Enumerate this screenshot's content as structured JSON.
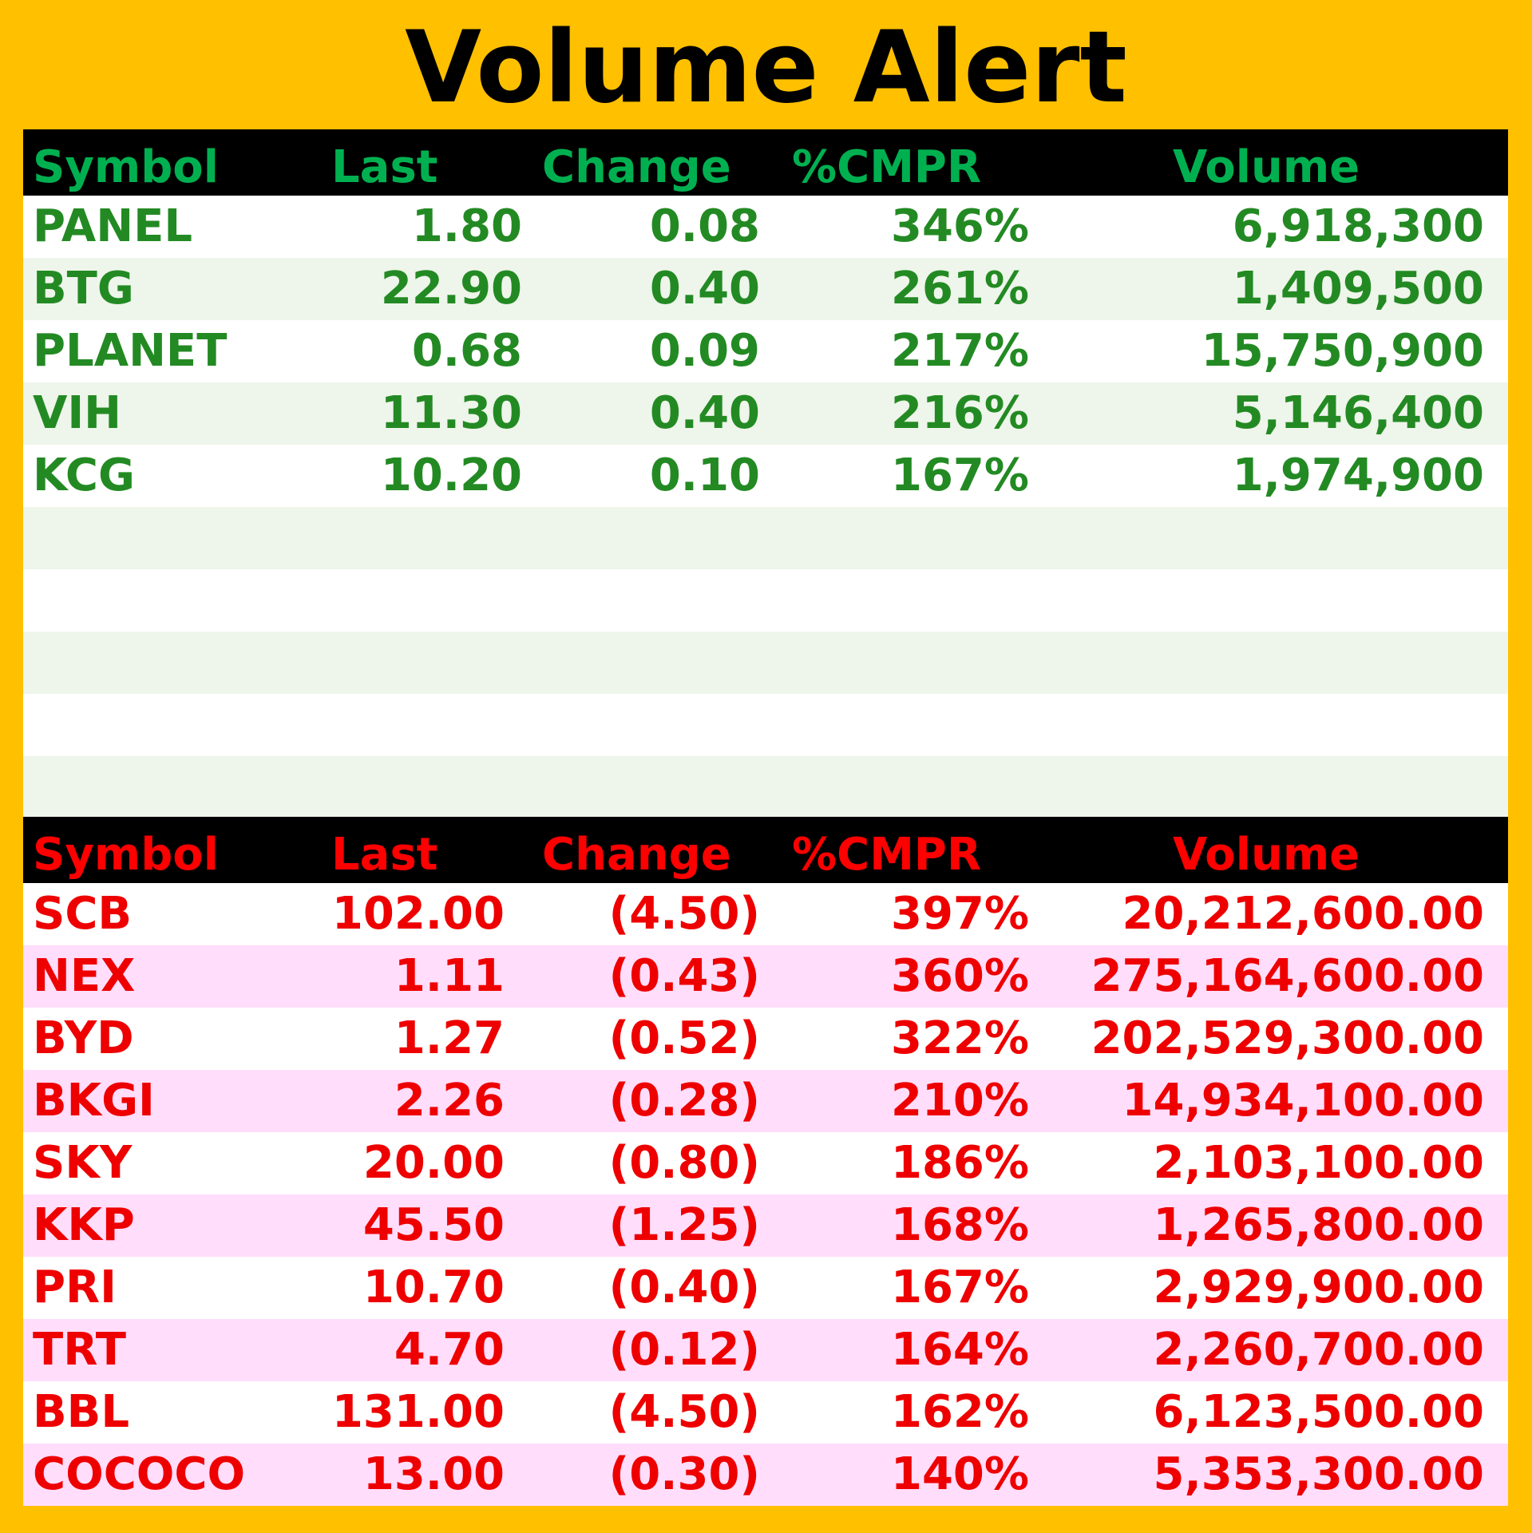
{
  "title": "Volume Alert",
  "headers": {
    "symbol": "Symbol",
    "last": "Last",
    "change": "Change",
    "cmpr": "%CMPR",
    "volume": "Volume"
  },
  "gainers": [
    {
      "symbol": "PANEL",
      "last": "1.80",
      "change": "0.08",
      "cmpr": "346%",
      "volume": "6,918,300"
    },
    {
      "symbol": "BTG",
      "last": "22.90",
      "change": "0.40",
      "cmpr": "261%",
      "volume": "1,409,500"
    },
    {
      "symbol": "PLANET",
      "last": "0.68",
      "change": "0.09",
      "cmpr": "217%",
      "volume": "15,750,900"
    },
    {
      "symbol": "VIH",
      "last": "11.30",
      "change": "0.40",
      "cmpr": "216%",
      "volume": "5,146,400"
    },
    {
      "symbol": "KCG",
      "last": "10.20",
      "change": "0.10",
      "cmpr": "167%",
      "volume": "1,974,900"
    }
  ],
  "losers": [
    {
      "symbol": "SCB",
      "last": "102.00",
      "change": "(4.50)",
      "cmpr": "397%",
      "volume": "20,212,600.00"
    },
    {
      "symbol": "NEX",
      "last": "1.11",
      "change": "(0.43)",
      "cmpr": "360%",
      "volume": "275,164,600.00"
    },
    {
      "symbol": "BYD",
      "last": "1.27",
      "change": "(0.52)",
      "cmpr": "322%",
      "volume": "202,529,300.00"
    },
    {
      "symbol": "BKGI",
      "last": "2.26",
      "change": "(0.28)",
      "cmpr": "210%",
      "volume": "14,934,100.00"
    },
    {
      "symbol": "SKY",
      "last": "20.00",
      "change": "(0.80)",
      "cmpr": "186%",
      "volume": "2,103,100.00"
    },
    {
      "symbol": "KKP",
      "last": "45.50",
      "change": "(1.25)",
      "cmpr": "168%",
      "volume": "1,265,800.00"
    },
    {
      "symbol": "PRI",
      "last": "10.70",
      "change": "(0.40)",
      "cmpr": "167%",
      "volume": "2,929,900.00"
    },
    {
      "symbol": "TRT",
      "last": "4.70",
      "change": "(0.12)",
      "cmpr": "164%",
      "volume": "2,260,700.00"
    },
    {
      "symbol": "BBL",
      "last": "131.00",
      "change": "(4.50)",
      "cmpr": "162%",
      "volume": "6,123,500.00"
    },
    {
      "symbol": "COCOCO",
      "last": "13.00",
      "change": "(0.30)",
      "cmpr": "140%",
      "volume": "5,353,300.00"
    }
  ],
  "colors": {
    "background": "#FFC000",
    "header_bg": "#000000",
    "gainers_header_text": "#00B050",
    "gainers_text": "#238A23",
    "gainers_stripe": "#EEF5EA",
    "losers_header_text": "#FF0000",
    "losers_text": "#EE0000",
    "losers_stripe": "#FFDDFB"
  }
}
